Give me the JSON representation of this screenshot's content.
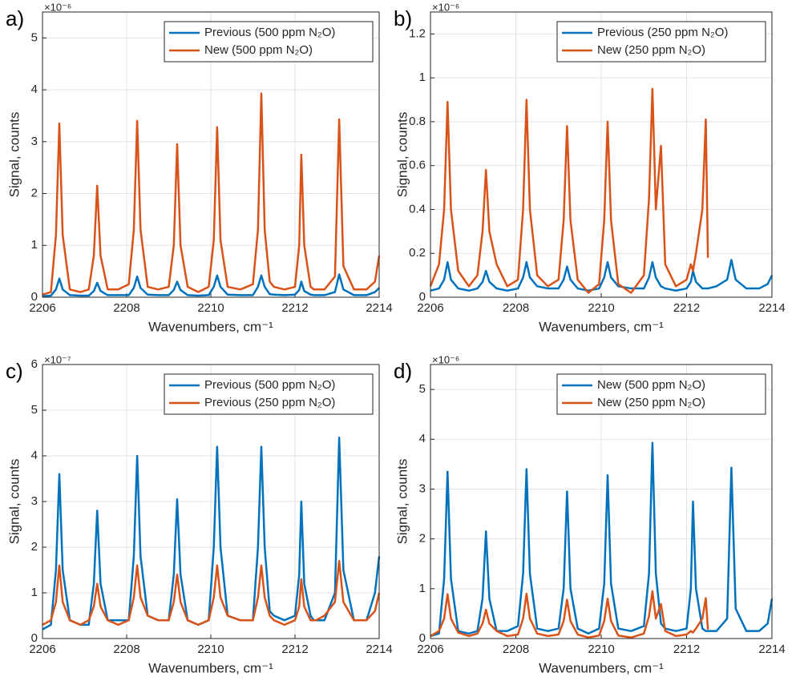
{
  "chart_data": [
    {
      "type": "line",
      "panel_label": "a)",
      "y_multiplier": "×10⁻⁶",
      "x_label": "Wavenumbers, cm⁻¹",
      "y_label": "Signal, counts",
      "x": [
        2206.0,
        2206.2,
        2206.32,
        2206.4,
        2206.48,
        2206.65,
        2206.9,
        2207.1,
        2207.22,
        2207.3,
        2207.38,
        2207.55,
        2207.8,
        2208.05,
        2208.17,
        2208.25,
        2208.33,
        2208.5,
        2208.75,
        2209.0,
        2209.12,
        2209.2,
        2209.28,
        2209.45,
        2209.7,
        2209.95,
        2210.07,
        2210.15,
        2210.23,
        2210.4,
        2210.7,
        2211.0,
        2211.12,
        2211.2,
        2211.28,
        2211.4,
        2211.5,
        2211.75,
        2212.0,
        2212.1,
        2212.15,
        2212.22,
        2212.37,
        2212.45,
        2212.5,
        2212.7,
        2212.95,
        2213.05,
        2213.15,
        2213.4,
        2213.7,
        2213.9,
        2214.0
      ],
      "series": [
        {
          "name": "Previous (500 ppm N₂O)",
          "color": "#0072bd",
          "values": [
            0.02,
            0.03,
            0.15,
            0.36,
            0.15,
            0.04,
            0.03,
            0.03,
            0.12,
            0.28,
            0.12,
            0.04,
            0.04,
            0.04,
            0.18,
            0.4,
            0.18,
            0.05,
            0.04,
            0.04,
            0.14,
            0.3,
            0.14,
            0.04,
            0.03,
            0.04,
            0.2,
            0.42,
            0.2,
            0.05,
            0.04,
            0.04,
            0.2,
            0.42,
            0.2,
            0.06,
            0.05,
            0.04,
            0.05,
            0.14,
            0.3,
            0.12,
            0.05,
            0.04,
            0.04,
            0.04,
            0.1,
            0.44,
            0.15,
            0.04,
            0.04,
            0.1,
            0.18
          ]
        },
        {
          "name": "New (500 ppm N₂O)",
          "color": "#d95319",
          "values": [
            0.05,
            0.1,
            1.2,
            3.35,
            1.2,
            0.15,
            0.1,
            0.15,
            0.8,
            2.15,
            0.8,
            0.15,
            0.15,
            0.25,
            1.3,
            3.4,
            1.3,
            0.2,
            0.15,
            0.2,
            1.0,
            2.95,
            1.0,
            0.2,
            0.1,
            0.2,
            1.1,
            3.28,
            1.1,
            0.2,
            0.15,
            0.25,
            1.3,
            3.93,
            1.3,
            0.3,
            0.2,
            0.15,
            0.2,
            1.0,
            2.75,
            1.0,
            0.2,
            0.15,
            0.15,
            0.15,
            0.4,
            3.43,
            0.6,
            0.15,
            0.15,
            0.3,
            0.8
          ]
        }
      ],
      "xlim": [
        2206,
        2214
      ],
      "ylim": [
        0,
        5.5
      ],
      "xticks": [
        2206,
        2208,
        2210,
        2212,
        2214
      ],
      "yticks": [
        0,
        1,
        2,
        3,
        4,
        5
      ],
      "grid": true,
      "legend": "upper right"
    },
    {
      "type": "line",
      "panel_label": "b)",
      "y_multiplier": "×10⁻⁶",
      "x_label": "Wavenumbers, cm⁻¹",
      "y_label": "Signal, counts",
      "x": [
        2206.0,
        2206.2,
        2206.32,
        2206.4,
        2206.48,
        2206.65,
        2206.9,
        2207.1,
        2207.22,
        2207.3,
        2207.38,
        2207.55,
        2207.8,
        2208.05,
        2208.17,
        2208.25,
        2208.33,
        2208.5,
        2208.75,
        2209.0,
        2209.12,
        2209.2,
        2209.28,
        2209.45,
        2209.7,
        2209.95,
        2210.07,
        2210.15,
        2210.23,
        2210.4,
        2210.7,
        2211.0,
        2211.12,
        2211.2,
        2211.28,
        2211.4,
        2211.5,
        2211.75,
        2212.0,
        2212.1,
        2212.15,
        2212.22,
        2212.37,
        2212.45,
        2212.5,
        2212.7,
        2212.95,
        2213.05,
        2213.15,
        2213.4,
        2213.7,
        2213.9,
        2214.0
      ],
      "series": [
        {
          "name": "Previous (250 ppm N₂O)",
          "color": "#0072bd",
          "values": [
            0.03,
            0.04,
            0.08,
            0.16,
            0.08,
            0.04,
            0.03,
            0.04,
            0.07,
            0.12,
            0.07,
            0.04,
            0.03,
            0.04,
            0.09,
            0.16,
            0.09,
            0.05,
            0.04,
            0.04,
            0.08,
            0.14,
            0.08,
            0.04,
            0.03,
            0.04,
            0.09,
            0.16,
            0.09,
            0.05,
            0.04,
            0.04,
            0.09,
            0.16,
            0.09,
            0.05,
            0.04,
            0.03,
            0.04,
            0.07,
            0.12,
            0.07,
            0.04,
            0.04,
            0.04,
            0.05,
            0.08,
            0.17,
            0.08,
            0.04,
            0.04,
            0.06,
            0.1
          ]
        },
        {
          "name": "New (250 ppm N₂O)",
          "color": "#d95319",
          "values": [
            0.05,
            0.15,
            0.4,
            0.89,
            0.4,
            0.12,
            0.05,
            0.1,
            0.3,
            0.58,
            0.3,
            0.15,
            0.05,
            0.08,
            0.4,
            0.9,
            0.4,
            0.1,
            0.05,
            0.08,
            0.35,
            0.78,
            0.35,
            0.08,
            0.02,
            0.06,
            0.35,
            0.8,
            0.35,
            0.06,
            0.02,
            0.1,
            0.45,
            0.95,
            0.4,
            0.69,
            0.15,
            0.05,
            0.08,
            0.15,
            0.12,
            0.2,
            0.4,
            0.81,
            0.18,
            null,
            null,
            null,
            null,
            null,
            null,
            null,
            null
          ]
        }
      ],
      "xlim": [
        2206,
        2214
      ],
      "ylim": [
        0,
        1.3
      ],
      "xticks": [
        2206,
        2208,
        2210,
        2212,
        2214
      ],
      "yticks": [
        0,
        0.2,
        0.4,
        0.6,
        0.8,
        1,
        1.2
      ],
      "grid": true,
      "legend": "upper right"
    },
    {
      "type": "line",
      "panel_label": "c)",
      "y_multiplier": "×10⁻⁷",
      "x_label": "Wavenumbers, cm⁻¹",
      "y_label": "Signal, counts",
      "x": [
        2206.0,
        2206.2,
        2206.32,
        2206.4,
        2206.48,
        2206.65,
        2206.9,
        2207.1,
        2207.22,
        2207.3,
        2207.38,
        2207.55,
        2207.8,
        2208.05,
        2208.17,
        2208.25,
        2208.33,
        2208.5,
        2208.75,
        2209.0,
        2209.12,
        2209.2,
        2209.28,
        2209.45,
        2209.7,
        2209.95,
        2210.07,
        2210.15,
        2210.23,
        2210.4,
        2210.7,
        2211.0,
        2211.12,
        2211.2,
        2211.28,
        2211.4,
        2211.5,
        2211.75,
        2212.0,
        2212.1,
        2212.15,
        2212.22,
        2212.37,
        2212.45,
        2212.5,
        2212.7,
        2212.95,
        2213.05,
        2213.15,
        2213.4,
        2213.7,
        2213.9,
        2214.0
      ],
      "series": [
        {
          "name": "Previous (500 ppm N₂O)",
          "color": "#0072bd",
          "values": [
            0.2,
            0.3,
            1.5,
            3.6,
            1.5,
            0.4,
            0.3,
            0.3,
            1.2,
            2.8,
            1.2,
            0.4,
            0.4,
            0.4,
            1.8,
            4.0,
            1.8,
            0.5,
            0.4,
            0.4,
            1.4,
            3.05,
            1.4,
            0.4,
            0.3,
            0.4,
            2.0,
            4.2,
            2.0,
            0.5,
            0.4,
            0.4,
            2.0,
            4.2,
            2.0,
            0.6,
            0.5,
            0.4,
            0.5,
            1.4,
            3.0,
            1.2,
            0.5,
            0.4,
            0.4,
            0.4,
            1.0,
            4.4,
            1.5,
            0.4,
            0.4,
            1.0,
            1.8
          ]
        },
        {
          "name": "Previous (250 ppm N₂O)",
          "color": "#d95319",
          "values": [
            0.3,
            0.4,
            0.8,
            1.6,
            0.8,
            0.4,
            0.3,
            0.4,
            0.7,
            1.2,
            0.7,
            0.4,
            0.3,
            0.4,
            0.9,
            1.6,
            0.9,
            0.5,
            0.4,
            0.4,
            0.8,
            1.4,
            0.8,
            0.4,
            0.3,
            0.4,
            0.9,
            1.6,
            0.9,
            0.5,
            0.4,
            0.4,
            0.9,
            1.6,
            0.9,
            0.5,
            0.4,
            0.3,
            0.4,
            0.7,
            1.3,
            0.7,
            0.4,
            0.4,
            0.4,
            0.5,
            0.8,
            1.7,
            0.8,
            0.4,
            0.4,
            0.6,
            1.0
          ]
        }
      ],
      "xlim": [
        2206,
        2214
      ],
      "ylim": [
        0,
        6
      ],
      "xticks": [
        2206,
        2208,
        2210,
        2212,
        2214
      ],
      "yticks": [
        0,
        1,
        2,
        3,
        4,
        5,
        6
      ],
      "grid": true,
      "legend": "upper right"
    },
    {
      "type": "line",
      "panel_label": "d)",
      "y_multiplier": "×10⁻⁶",
      "x_label": "Wavenumbers, cm⁻¹",
      "y_label": "Signal, counts",
      "x": [
        2206.0,
        2206.2,
        2206.32,
        2206.4,
        2206.48,
        2206.65,
        2206.9,
        2207.1,
        2207.22,
        2207.3,
        2207.38,
        2207.55,
        2207.8,
        2208.05,
        2208.17,
        2208.25,
        2208.33,
        2208.5,
        2208.75,
        2209.0,
        2209.12,
        2209.2,
        2209.28,
        2209.45,
        2209.7,
        2209.95,
        2210.07,
        2210.15,
        2210.23,
        2210.4,
        2210.7,
        2211.0,
        2211.12,
        2211.2,
        2211.28,
        2211.4,
        2211.5,
        2211.75,
        2212.0,
        2212.1,
        2212.15,
        2212.22,
        2212.37,
        2212.45,
        2212.5,
        2212.7,
        2212.95,
        2213.05,
        2213.15,
        2213.4,
        2213.7,
        2213.9,
        2214.0
      ],
      "series": [
        {
          "name": "New (500 ppm N₂O)",
          "color": "#0072bd",
          "values": [
            0.05,
            0.1,
            1.2,
            3.35,
            1.2,
            0.15,
            0.1,
            0.15,
            0.8,
            2.15,
            0.8,
            0.15,
            0.15,
            0.25,
            1.3,
            3.4,
            1.3,
            0.2,
            0.15,
            0.2,
            1.0,
            2.95,
            1.0,
            0.2,
            0.1,
            0.2,
            1.1,
            3.28,
            1.1,
            0.2,
            0.15,
            0.25,
            1.3,
            3.93,
            1.3,
            0.3,
            0.2,
            0.15,
            0.2,
            1.0,
            2.75,
            1.0,
            0.2,
            0.15,
            0.15,
            0.15,
            0.4,
            3.43,
            0.6,
            0.15,
            0.15,
            0.3,
            0.8
          ]
        },
        {
          "name": "New (250 ppm N₂O)",
          "color": "#d95319",
          "values": [
            0.05,
            0.15,
            0.4,
            0.89,
            0.4,
            0.12,
            0.05,
            0.1,
            0.3,
            0.58,
            0.3,
            0.15,
            0.05,
            0.08,
            0.4,
            0.9,
            0.4,
            0.1,
            0.05,
            0.08,
            0.35,
            0.78,
            0.35,
            0.08,
            0.02,
            0.06,
            0.35,
            0.8,
            0.35,
            0.06,
            0.02,
            0.1,
            0.45,
            0.95,
            0.4,
            0.69,
            0.15,
            0.05,
            0.08,
            0.15,
            0.12,
            0.2,
            0.4,
            0.81,
            0.18,
            null,
            null,
            null,
            null,
            null,
            null,
            null,
            null
          ]
        }
      ],
      "xlim": [
        2206,
        2214
      ],
      "ylim": [
        0,
        5.5
      ],
      "xticks": [
        2206,
        2208,
        2210,
        2212,
        2214
      ],
      "yticks": [
        0,
        1,
        2,
        3,
        4,
        5
      ],
      "grid": true,
      "legend": "upper right"
    }
  ]
}
